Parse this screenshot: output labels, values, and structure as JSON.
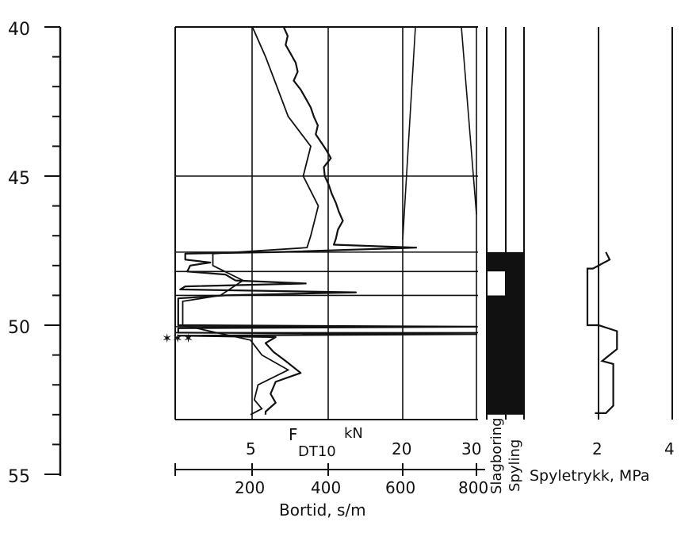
{
  "chart_data": {
    "type": "line",
    "depth_axis": {
      "ticks": [
        "40",
        "45",
        "50",
        "55"
      ],
      "range": [
        40,
        55
      ],
      "inverted": true
    },
    "force_axis": {
      "label_main": "F",
      "label_sub": "DT10",
      "label_unit": "kN",
      "ticks": [
        "5",
        "10",
        "20",
        "30"
      ],
      "range": [
        0,
        30
      ]
    },
    "time_axis": {
      "label": "Bortid, s/m",
      "ticks": [
        "200",
        "400",
        "600",
        "800"
      ],
      "range": [
        0,
        800
      ]
    },
    "pressure_axis": {
      "label": "Spyletrykk, MPa",
      "ticks": [
        "2",
        "4"
      ],
      "range": [
        0,
        4
      ]
    },
    "method_columns": [
      "Slagboring",
      "Spyling"
    ],
    "reference_depths": [
      45.0,
      47.55,
      48.2,
      49.0,
      50.05,
      50.25
    ],
    "rock_marker_depth": 50.5,
    "rock_marker_symbol": "✶✶✶",
    "series": [
      {
        "kind": "force_profile",
        "points": [
          [
            10.8,
            40.0
          ],
          [
            11.2,
            40.3
          ],
          [
            11.0,
            40.6
          ],
          [
            11.5,
            40.9
          ],
          [
            12.0,
            41.2
          ],
          [
            12.2,
            41.5
          ],
          [
            11.8,
            41.8
          ],
          [
            12.5,
            42.1
          ],
          [
            13.0,
            42.4
          ],
          [
            13.5,
            42.7
          ],
          [
            13.8,
            43.0
          ],
          [
            14.2,
            43.3
          ],
          [
            14.0,
            43.6
          ],
          [
            14.6,
            43.9
          ],
          [
            15.0,
            44.1
          ],
          [
            15.5,
            44.4
          ],
          [
            14.8,
            44.7
          ],
          [
            14.9,
            45.0
          ],
          [
            15.3,
            45.3
          ],
          [
            15.6,
            45.6
          ],
          [
            16.0,
            45.9
          ],
          [
            16.3,
            46.2
          ],
          [
            16.7,
            46.5
          ],
          [
            16.2,
            46.8
          ],
          [
            16.0,
            47.1
          ],
          [
            15.8,
            47.3
          ],
          [
            24.0,
            47.4
          ],
          [
            10.0,
            47.55
          ],
          [
            1.0,
            47.6
          ],
          [
            1.0,
            47.8
          ],
          [
            3.5,
            47.9
          ],
          [
            1.5,
            48.0
          ],
          [
            1.2,
            48.2
          ],
          [
            5.0,
            48.3
          ],
          [
            6.0,
            48.5
          ],
          [
            13.0,
            48.6
          ],
          [
            1.0,
            48.7
          ],
          [
            0.5,
            48.8
          ],
          [
            18.0,
            48.9
          ],
          [
            5.0,
            49.0
          ],
          [
            0.3,
            49.1
          ],
          [
            0.3,
            50.0
          ],
          [
            30.0,
            50.05
          ],
          [
            0.3,
            50.1
          ],
          [
            0.3,
            50.25
          ],
          [
            30.0,
            50.3
          ],
          [
            0.3,
            50.35
          ],
          [
            10.0,
            50.4
          ],
          [
            9.0,
            50.6
          ],
          [
            9.8,
            50.9
          ],
          [
            11.0,
            51.2
          ],
          [
            12.5,
            51.6
          ],
          [
            10.0,
            51.9
          ],
          [
            9.5,
            52.3
          ],
          [
            10.0,
            52.6
          ],
          [
            9.0,
            52.9
          ],
          [
            9.0,
            53.0
          ]
        ]
      },
      {
        "kind": "bortid",
        "points": [
          [
            205,
            40.0
          ],
          [
            240,
            41.0
          ],
          [
            270,
            42.0
          ],
          [
            300,
            43.0
          ],
          [
            360,
            44.0
          ],
          [
            340,
            45.0
          ],
          [
            380,
            46.0
          ],
          [
            360,
            47.0
          ],
          [
            350,
            47.4
          ],
          [
            100,
            47.6
          ],
          [
            100,
            48.0
          ],
          [
            180,
            48.5
          ],
          [
            120,
            49.0
          ],
          [
            20,
            49.2
          ],
          [
            20,
            50.0
          ],
          [
            200,
            50.5
          ],
          [
            230,
            51.0
          ],
          [
            300,
            51.5
          ],
          [
            220,
            52.0
          ],
          [
            210,
            52.5
          ],
          [
            230,
            52.8
          ],
          [
            200,
            53.0
          ]
        ]
      },
      {
        "kind": "spyletrykk",
        "points": [
          [
            2.2,
            47.55
          ],
          [
            2.3,
            47.8
          ],
          [
            1.85,
            48.1
          ],
          [
            1.7,
            48.1
          ],
          [
            1.7,
            49.0
          ],
          [
            1.7,
            50.0
          ],
          [
            2.0,
            50.0
          ],
          [
            2.5,
            50.2
          ],
          [
            2.5,
            50.8
          ],
          [
            2.1,
            51.2
          ],
          [
            2.4,
            51.3
          ],
          [
            2.4,
            52.0
          ],
          [
            2.4,
            52.7
          ],
          [
            2.2,
            52.95
          ],
          [
            1.9,
            52.95
          ]
        ]
      }
    ],
    "method_blocks": [
      {
        "column": "Slagboring",
        "from": 47.55,
        "to": 48.2
      },
      {
        "column": "Slagboring",
        "from": 49.0,
        "to": 53.0
      },
      {
        "column": "Spyling",
        "from": 47.55,
        "to": 53.0
      }
    ],
    "method_gaps": [
      {
        "column": "Slagboring",
        "from": 48.2,
        "to": 49.0
      }
    ]
  }
}
